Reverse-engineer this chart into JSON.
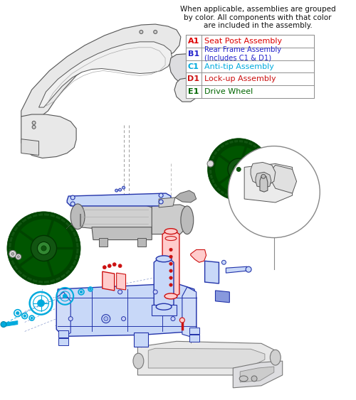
{
  "background_color": "#ffffff",
  "legend_header": "When applicable, assemblies are grouped\nby color. All components with that color\nare included in the assembly.",
  "legend_items": [
    {
      "code": "A1",
      "label": "Seat Post Assembly",
      "text_color": "#dd0000",
      "code_color": "#dd0000"
    },
    {
      "code": "B1",
      "label": "Rear Frame Assembly\n(Includes C1 & D1)",
      "text_color": "#2222cc",
      "code_color": "#2222cc"
    },
    {
      "code": "C1",
      "label": "Anti-tip Assembly",
      "text_color": "#00aadd",
      "code_color": "#00aadd"
    },
    {
      "code": "D1",
      "label": "Lock-up Assembly",
      "text_color": "#cc1111",
      "code_color": "#cc1111"
    },
    {
      "code": "E1",
      "label": "Drive Wheel",
      "text_color": "#006600",
      "code_color": "#006600"
    }
  ],
  "header_fontsize": 7.5,
  "legend_fontsize": 8.0,
  "legend_code_fontsize": 8.0,
  "fig_width": 5.0,
  "fig_height": 5.63,
  "dpi": 100,
  "blue": "#2233aa",
  "blue_light": "#c8d8f8",
  "red": "#cc1111",
  "red_light": "#ffcccc",
  "cyan": "#00aadd",
  "cyan_light": "#aaddff",
  "green_dark": "#004400",
  "green_mid": "#115511",
  "green_light": "#338833",
  "gray_dark": "#555555",
  "gray_mid": "#888888",
  "gray_light": "#cccccc",
  "gray_bg": "#e8e8e8",
  "white": "#ffffff"
}
